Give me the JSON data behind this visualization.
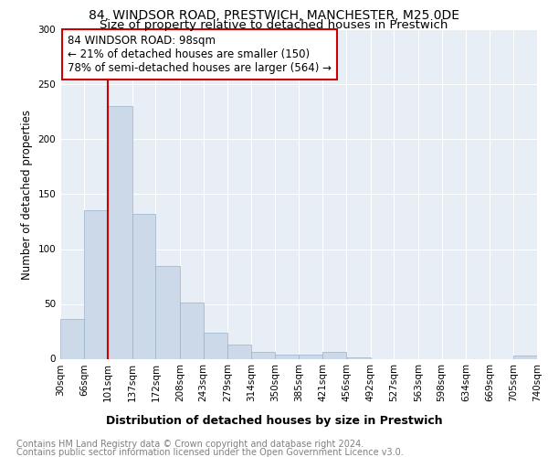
{
  "title": "84, WINDSOR ROAD, PRESTWICH, MANCHESTER, M25 0DE",
  "subtitle": "Size of property relative to detached houses in Prestwich",
  "xlabel": "Distribution of detached houses by size in Prestwich",
  "ylabel": "Number of detached properties",
  "footnote1": "Contains HM Land Registry data © Crown copyright and database right 2024.",
  "footnote2": "Contains public sector information licensed under the Open Government Licence v3.0.",
  "annotation_line1": "84 WINDSOR ROAD: 98sqm",
  "annotation_line2": "← 21% of detached houses are smaller (150)",
  "annotation_line3": "78% of semi-detached houses are larger (564) →",
  "property_size": 98,
  "bin_edges": [
    30,
    66,
    101,
    137,
    172,
    208,
    243,
    279,
    314,
    350,
    385,
    421,
    456,
    492,
    527,
    563,
    598,
    634,
    669,
    705,
    740
  ],
  "bin_labels": [
    "30sqm",
    "66sqm",
    "101sqm",
    "137sqm",
    "172sqm",
    "208sqm",
    "243sqm",
    "279sqm",
    "314sqm",
    "350sqm",
    "385sqm",
    "421sqm",
    "456sqm",
    "492sqm",
    "527sqm",
    "563sqm",
    "598sqm",
    "634sqm",
    "669sqm",
    "705sqm",
    "740sqm"
  ],
  "bar_values": [
    36,
    135,
    230,
    132,
    85,
    51,
    24,
    13,
    6,
    4,
    4,
    6,
    1,
    0,
    0,
    0,
    0,
    0,
    0,
    3
  ],
  "bar_color": "#ccd9e8",
  "bar_edge_color": "#9ab0c8",
  "vline_color": "#cc0000",
  "vline_x": 101,
  "ylim": [
    0,
    300
  ],
  "yticks": [
    0,
    50,
    100,
    150,
    200,
    250,
    300
  ],
  "background_color": "#ffffff",
  "plot_bg_color": "#e8eef5",
  "grid_color": "#ffffff",
  "annotation_box_color": "#ffffff",
  "annotation_box_edge": "#cc0000",
  "title_fontsize": 10,
  "subtitle_fontsize": 9.5,
  "ylabel_fontsize": 8.5,
  "xlabel_fontsize": 9,
  "tick_fontsize": 7.5,
  "annotation_fontsize": 8.5,
  "footnote_fontsize": 7
}
